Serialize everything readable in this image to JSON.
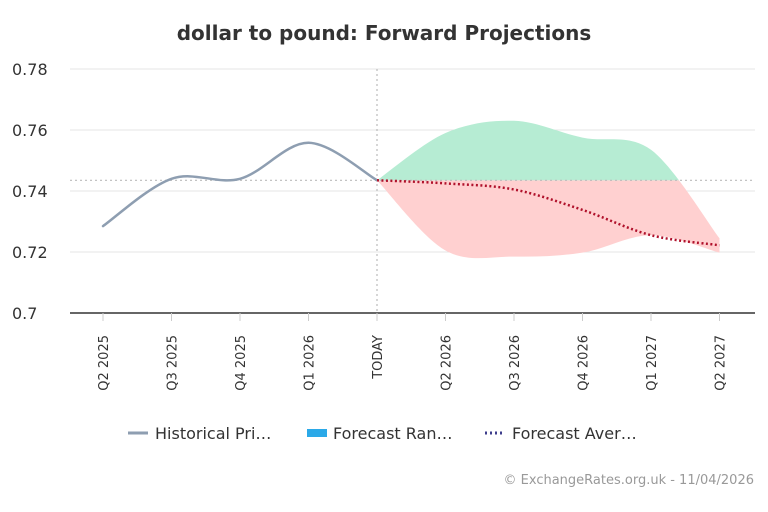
{
  "chart_data": {
    "type": "line",
    "title": "dollar to pound: Forward Projections",
    "categories": [
      "Q2 2025",
      "Q3 2025",
      "Q4 2025",
      "Q1 2026",
      "TODAY",
      "Q2 2026",
      "Q3 2026",
      "Q4 2026",
      "Q1 2027",
      "Q2 2027"
    ],
    "ylim": [
      0.7,
      0.78
    ],
    "y_ticks": [
      "0.7",
      "0.72",
      "0.74",
      "0.76",
      "0.78"
    ],
    "grid": true,
    "reference_line": 0.7435,
    "series": [
      {
        "name": "Historical Pri…",
        "style": "solid",
        "color": "#8e9eb1",
        "values": [
          0.7285,
          0.744,
          0.744,
          0.7558,
          0.7435,
          null,
          null,
          null,
          null,
          null
        ]
      },
      {
        "name": "Forecast Ran…",
        "style": "area",
        "color": "#2ba9e8",
        "upper_color": "#b6ecd3",
        "lower_color": "#ffd0d0",
        "upper": [
          null,
          null,
          null,
          null,
          0.7435,
          0.759,
          0.763,
          0.7575,
          0.7535,
          0.7245
        ],
        "lower": [
          null,
          null,
          null,
          null,
          0.7435,
          0.7205,
          0.7185,
          0.7198,
          0.7255,
          0.7198
        ]
      },
      {
        "name": "Forecast Aver…",
        "style": "dotted",
        "color": "#b0112b",
        "legend_color": "#3e3e8c",
        "values": [
          null,
          null,
          null,
          null,
          0.7435,
          0.7425,
          0.7405,
          0.7338,
          0.7255,
          0.7222
        ]
      }
    ],
    "legend_position": "bottom",
    "credit": "© ExchangeRates.org.uk - 11/04/2026"
  }
}
